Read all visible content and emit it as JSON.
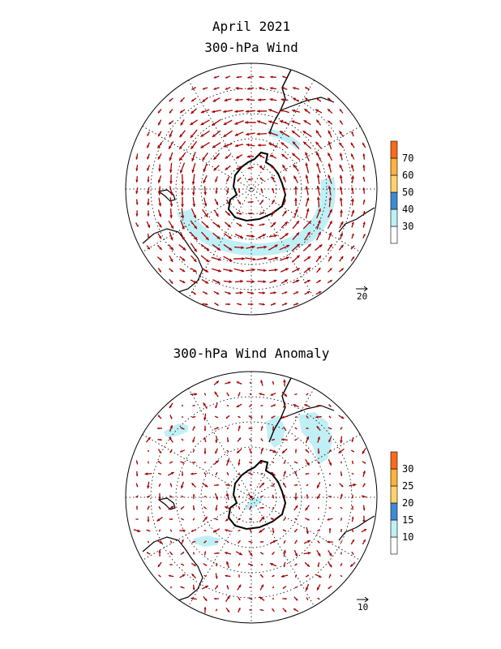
{
  "figure": {
    "title": "April 2021",
    "panels": [
      {
        "id": "mean",
        "title": "300-hPa Wind",
        "colorbar": {
          "levels": [
            "30",
            "40",
            "50",
            "60",
            "70"
          ],
          "colors": [
            "#ffffff",
            "#bff0f6",
            "#3e8ad6",
            "#ffd36a",
            "#ffb23d",
            "#ff6a1a"
          ]
        },
        "reference_vector_label": "20",
        "vector_color": "#a50000",
        "shaded_color": "#bff0f6"
      },
      {
        "id": "anomaly",
        "title": "300-hPa Wind Anomaly",
        "colorbar": {
          "levels": [
            "10",
            "15",
            "20",
            "25",
            "30"
          ],
          "colors": [
            "#ffffff",
            "#bff0f6",
            "#3e8ad6",
            "#ffd36a",
            "#ffb23d",
            "#ff6a1a"
          ]
        },
        "reference_vector_label": "10",
        "vector_color": "#a50000",
        "shaded_color": "#bff0f6"
      }
    ]
  }
}
